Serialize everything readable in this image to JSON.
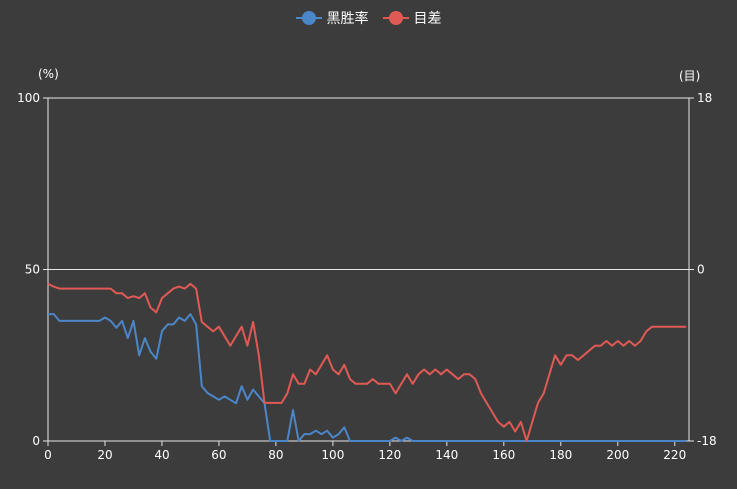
{
  "legend": {
    "items": [
      {
        "label": "黑胜率",
        "color": "#4a86c8"
      },
      {
        "label": "目差",
        "color": "#e05a55"
      }
    ]
  },
  "axes": {
    "left_unit": "(%)",
    "right_unit": "(目)"
  },
  "chart_data": {
    "type": "line",
    "x": [
      0,
      2,
      4,
      6,
      8,
      10,
      12,
      14,
      16,
      18,
      20,
      22,
      24,
      26,
      28,
      30,
      32,
      34,
      36,
      38,
      40,
      42,
      44,
      46,
      48,
      50,
      52,
      54,
      56,
      58,
      60,
      62,
      64,
      66,
      68,
      70,
      72,
      74,
      76,
      78,
      80,
      82,
      84,
      86,
      88,
      90,
      92,
      94,
      96,
      98,
      100,
      102,
      104,
      106,
      108,
      110,
      112,
      114,
      116,
      118,
      120,
      122,
      124,
      126,
      128,
      130,
      132,
      134,
      136,
      138,
      140,
      142,
      144,
      146,
      148,
      150,
      152,
      154,
      156,
      158,
      160,
      162,
      164,
      166,
      168,
      170,
      172,
      174,
      176,
      178,
      180,
      182,
      184,
      186,
      188,
      190,
      192,
      194,
      196,
      198,
      200,
      202,
      204,
      206,
      208,
      210,
      212,
      214,
      216,
      218,
      220,
      222,
      224
    ],
    "series": [
      {
        "name": "黑胜率",
        "axis": "left",
        "color": "#4a86c8",
        "values": [
          37,
          37,
          35,
          35,
          35,
          35,
          35,
          35,
          35,
          35,
          36,
          35,
          33,
          35,
          30,
          35,
          25,
          30,
          26,
          24,
          32,
          34,
          34,
          36,
          35,
          37,
          34,
          16,
          14,
          13,
          12,
          13,
          12,
          11,
          16,
          12,
          15,
          13,
          11,
          0,
          0,
          0,
          0,
          9,
          0,
          2,
          2,
          3,
          2,
          3,
          1,
          2,
          4,
          0,
          0,
          0,
          0,
          0,
          0,
          0,
          0,
          1,
          0,
          1,
          0,
          0,
          0,
          0,
          0,
          0,
          0,
          0,
          0,
          0,
          0,
          0,
          0,
          0,
          0,
          0,
          0,
          0,
          0,
          0,
          0,
          0,
          0,
          0,
          0,
          0,
          0,
          0,
          0,
          0,
          0,
          0,
          0,
          0,
          0,
          0,
          0,
          0,
          0,
          0,
          0,
          0,
          0,
          0,
          0,
          0,
          0,
          0,
          0
        ]
      },
      {
        "name": "目差",
        "axis": "right",
        "color": "#e05a55",
        "values": [
          -1.5,
          -1.8,
          -2,
          -2,
          -2,
          -2,
          -2,
          -2,
          -2,
          -2,
          -2,
          -2,
          -2.5,
          -2.5,
          -3,
          -2.8,
          -3,
          -2.5,
          -4,
          -4.5,
          -3,
          -2.5,
          -2,
          -1.8,
          -2,
          -1.5,
          -2,
          -5.5,
          -6,
          -6.5,
          -6,
          -7,
          -8,
          -7,
          -6,
          -8,
          -5.5,
          -9,
          -14,
          -14,
          -14,
          -14,
          -13,
          -11,
          -12,
          -12,
          -10.5,
          -11,
          -10,
          -9,
          -10.5,
          -11,
          -10,
          -11.5,
          -12,
          -12,
          -12,
          -11.5,
          -12,
          -12,
          -12,
          -13,
          -12,
          -11,
          -12,
          -11,
          -10.5,
          -11,
          -10.5,
          -11,
          -10.5,
          -11,
          -11.5,
          -11,
          -11,
          -11.5,
          -13,
          -14,
          -15,
          -16,
          -16.5,
          -16,
          -17,
          -16,
          -18,
          -16,
          -14,
          -13,
          -11,
          -9,
          -10,
          -9,
          -9,
          -9.5,
          -9,
          -8.5,
          -8,
          -8,
          -7.5,
          -8,
          -7.5,
          -8,
          -7.5,
          -8,
          -7.5,
          -6.5,
          -6,
          -6,
          -6,
          -6,
          -6,
          -6,
          -6
        ]
      }
    ],
    "xlim": [
      0,
      225
    ],
    "x_ticks": [
      0,
      20,
      40,
      60,
      80,
      100,
      120,
      140,
      160,
      180,
      200,
      220
    ],
    "y_left": {
      "lim": [
        0,
        100
      ],
      "ticks": [
        0,
        50,
        100
      ]
    },
    "y_right": {
      "lim": [
        -18,
        18
      ],
      "ticks": [
        -18,
        0,
        18
      ]
    },
    "grid": true,
    "legend_position": "top-center"
  }
}
